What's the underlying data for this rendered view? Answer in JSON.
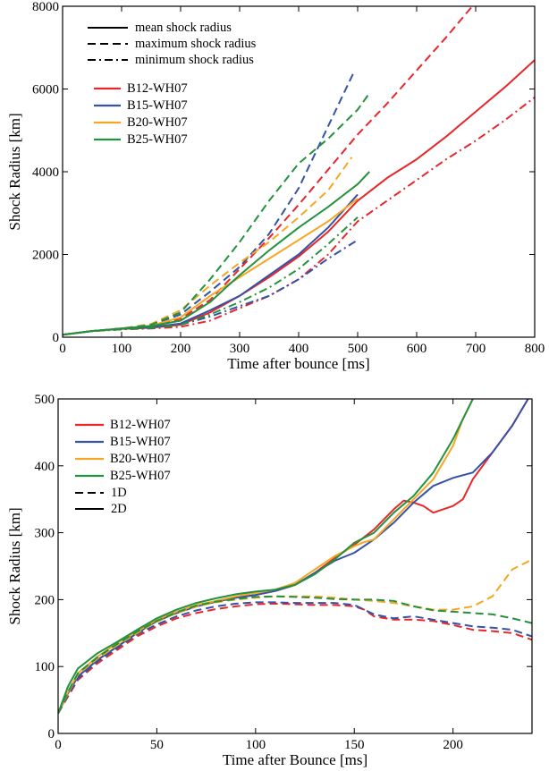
{
  "chart_data": [
    {
      "type": "line",
      "xlabel": "Time after bounce [ms]",
      "ylabel": "Shock Radius [km]",
      "xlim": [
        0,
        800
      ],
      "ylim": [
        0,
        8000
      ],
      "xticks": [
        0,
        100,
        200,
        300,
        400,
        500,
        600,
        700,
        800
      ],
      "yticks": [
        0,
        2000,
        4000,
        6000,
        8000
      ],
      "xtick_labels": [
        "0",
        "100",
        "200",
        "300",
        "400",
        "500",
        "600",
        "700",
        "800"
      ],
      "ytick_labels": [
        "0",
        "2000",
        "4000",
        "6000",
        "8000"
      ],
      "style_legend": [
        {
          "label": "mean shock radius",
          "dash": "solid"
        },
        {
          "label": "maximum shock radius",
          "dash": "dashed"
        },
        {
          "label": "minimum shock radius",
          "dash": "dashdot"
        }
      ],
      "color_legend": [
        {
          "label": "B12-WH07",
          "color": "#e8272b"
        },
        {
          "label": "B15-WH07",
          "color": "#3552a6"
        },
        {
          "label": "B20-WH07",
          "color": "#f5a623"
        },
        {
          "label": "B25-WH07",
          "color": "#24913f"
        }
      ],
      "series": [
        {
          "name": "B12-WH07",
          "kind": "mean",
          "color": "#e8272b",
          "dash": "solid",
          "x": [
            0,
            50,
            100,
            150,
            200,
            250,
            300,
            350,
            400,
            450,
            500,
            550,
            600,
            650,
            700,
            750,
            800
          ],
          "y": [
            60,
            150,
            200,
            230,
            300,
            600,
            1000,
            1450,
            1950,
            2550,
            3300,
            3850,
            4300,
            4850,
            5450,
            6050,
            6700
          ]
        },
        {
          "name": "B12-WH07",
          "kind": "maximum",
          "color": "#e8272b",
          "dash": "dashed",
          "x": [
            0,
            50,
            100,
            150,
            200,
            250,
            300,
            350,
            400,
            450,
            500,
            550,
            600,
            650,
            700
          ],
          "y": [
            60,
            150,
            200,
            260,
            450,
            900,
            1650,
            2400,
            3200,
            4050,
            4900,
            5650,
            6450,
            7250,
            8100
          ]
        },
        {
          "name": "B12-WH07",
          "kind": "minimum",
          "color": "#e8272b",
          "dash": "dashdot",
          "x": [
            0,
            50,
            100,
            150,
            200,
            250,
            300,
            350,
            400,
            450,
            500,
            550,
            600,
            650,
            700,
            750,
            800
          ],
          "y": [
            60,
            150,
            190,
            210,
            250,
            400,
            700,
            1000,
            1400,
            2000,
            2800,
            3300,
            3800,
            4300,
            4750,
            5250,
            5800
          ]
        },
        {
          "name": "B15-WH07",
          "kind": "mean",
          "color": "#3552a6",
          "dash": "solid",
          "x": [
            0,
            50,
            100,
            150,
            200,
            250,
            300,
            350,
            400,
            450,
            500
          ],
          "y": [
            60,
            150,
            210,
            240,
            330,
            650,
            1000,
            1500,
            2000,
            2650,
            3450
          ]
        },
        {
          "name": "B15-WH07",
          "kind": "maximum",
          "color": "#3552a6",
          "dash": "dashed",
          "x": [
            0,
            50,
            100,
            150,
            200,
            250,
            300,
            350,
            400,
            450,
            495
          ],
          "y": [
            60,
            150,
            210,
            300,
            550,
            1100,
            1700,
            2500,
            3600,
            5100,
            6450
          ]
        },
        {
          "name": "B15-WH07",
          "kind": "minimum",
          "color": "#3552a6",
          "dash": "dashdot",
          "x": [
            0,
            50,
            100,
            150,
            200,
            250,
            300,
            350,
            400,
            450,
            500
          ],
          "y": [
            60,
            150,
            190,
            220,
            300,
            500,
            750,
            1000,
            1400,
            1900,
            2350
          ]
        },
        {
          "name": "B20-WH07",
          "kind": "mean",
          "color": "#f5a623",
          "dash": "solid",
          "x": [
            0,
            50,
            100,
            150,
            200,
            250,
            300,
            350,
            400,
            450,
            500
          ],
          "y": [
            60,
            150,
            210,
            280,
            480,
            1000,
            1450,
            1900,
            2350,
            2800,
            3350
          ]
        },
        {
          "name": "B20-WH07",
          "kind": "maximum",
          "color": "#f5a623",
          "dash": "dashed",
          "x": [
            0,
            50,
            100,
            150,
            200,
            250,
            300,
            350,
            400,
            450,
            490
          ],
          "y": [
            60,
            150,
            210,
            320,
            650,
            1250,
            1800,
            2300,
            2900,
            3550,
            4350
          ]
        },
        {
          "name": "B25-WH07",
          "kind": "mean",
          "color": "#24913f",
          "dash": "solid",
          "x": [
            0,
            50,
            100,
            150,
            200,
            250,
            300,
            350,
            400,
            450,
            500,
            520
          ],
          "y": [
            60,
            150,
            210,
            270,
            400,
            850,
            1500,
            2100,
            2650,
            3150,
            3700,
            4000
          ]
        },
        {
          "name": "B25-WH07",
          "kind": "maximum",
          "color": "#24913f",
          "dash": "dashed",
          "x": [
            0,
            50,
            100,
            150,
            200,
            250,
            300,
            350,
            400,
            450,
            500,
            520
          ],
          "y": [
            60,
            150,
            210,
            300,
            600,
            1400,
            2300,
            3300,
            4200,
            4800,
            5500,
            5900
          ]
        },
        {
          "name": "B25-WH07",
          "kind": "minimum",
          "color": "#24913f",
          "dash": "dashdot",
          "x": [
            0,
            50,
            100,
            150,
            200,
            250,
            300,
            350,
            400,
            450,
            500
          ],
          "y": [
            60,
            150,
            190,
            220,
            300,
            550,
            850,
            1200,
            1650,
            2250,
            2900
          ]
        }
      ]
    },
    {
      "type": "line",
      "xlabel": "Time after Bounce [ms]",
      "ylabel": "Shock Radius [km]",
      "xlim": [
        0,
        240
      ],
      "ylim": [
        0,
        500
      ],
      "xticks": [
        0,
        50,
        100,
        150,
        200
      ],
      "yticks": [
        0,
        100,
        200,
        300,
        400,
        500
      ],
      "xtick_labels": [
        "0",
        "50",
        "100",
        "150",
        "200"
      ],
      "ytick_labels": [
        "0",
        "100",
        "200",
        "300",
        "400",
        "500"
      ],
      "color_legend": [
        {
          "label": "B12-WH07",
          "color": "#e8272b"
        },
        {
          "label": "B15-WH07",
          "color": "#3552a6"
        },
        {
          "label": "B20-WH07",
          "color": "#f5a623"
        },
        {
          "label": "B25-WH07",
          "color": "#24913f"
        }
      ],
      "style_legend": [
        {
          "label": "1D",
          "dash": "dashed"
        },
        {
          "label": "2D",
          "dash": "solid"
        }
      ],
      "series": [
        {
          "name": "B12-WH07",
          "kind": "2D",
          "color": "#e8272b",
          "dash": "solid",
          "x": [
            0,
            5,
            10,
            20,
            30,
            40,
            50,
            60,
            70,
            80,
            90,
            100,
            110,
            120,
            130,
            140,
            150,
            160,
            170,
            175,
            180,
            185,
            190,
            195,
            200,
            205,
            210,
            220,
            230,
            238
          ],
          "y": [
            30,
            60,
            85,
            110,
            130,
            150,
            168,
            180,
            190,
            197,
            203,
            207,
            213,
            222,
            240,
            262,
            282,
            305,
            335,
            348,
            345,
            340,
            330,
            335,
            340,
            350,
            380,
            420,
            460,
            500
          ]
        },
        {
          "name": "B15-WH07",
          "kind": "2D",
          "color": "#3552a6",
          "dash": "solid",
          "x": [
            0,
            5,
            10,
            20,
            30,
            40,
            50,
            60,
            70,
            80,
            90,
            100,
            110,
            120,
            130,
            140,
            150,
            160,
            170,
            180,
            190,
            200,
            210,
            220,
            230,
            238
          ],
          "y": [
            30,
            60,
            85,
            110,
            130,
            150,
            168,
            180,
            190,
            197,
            203,
            207,
            213,
            222,
            240,
            258,
            270,
            290,
            315,
            345,
            370,
            382,
            390,
            420,
            460,
            500
          ]
        },
        {
          "name": "B20-WH07",
          "kind": "2D",
          "color": "#f5a623",
          "dash": "solid",
          "x": [
            0,
            5,
            10,
            20,
            30,
            40,
            50,
            60,
            70,
            80,
            90,
            100,
            110,
            120,
            130,
            140,
            150,
            155,
            160,
            170,
            180,
            190,
            200,
            205,
            210
          ],
          "y": [
            30,
            62,
            90,
            115,
            135,
            152,
            170,
            182,
            192,
            198,
            205,
            210,
            215,
            225,
            245,
            265,
            280,
            286,
            290,
            320,
            350,
            380,
            430,
            470,
            500
          ]
        },
        {
          "name": "B25-WH07",
          "kind": "2D",
          "color": "#24913f",
          "dash": "solid",
          "x": [
            0,
            5,
            10,
            20,
            30,
            40,
            50,
            60,
            70,
            80,
            90,
            100,
            110,
            120,
            130,
            140,
            150,
            160,
            170,
            180,
            190,
            200,
            210
          ],
          "y": [
            30,
            70,
            97,
            120,
            137,
            155,
            172,
            185,
            195,
            202,
            208,
            212,
            215,
            222,
            238,
            260,
            285,
            300,
            330,
            355,
            390,
            440,
            500
          ]
        },
        {
          "name": "B12-WH07",
          "kind": "1D",
          "color": "#e8272b",
          "dash": "dashed",
          "x": [
            0,
            5,
            10,
            20,
            30,
            40,
            50,
            60,
            70,
            80,
            90,
            100,
            110,
            120,
            130,
            140,
            150,
            155,
            160,
            170,
            180,
            190,
            200,
            210,
            220,
            230,
            240
          ],
          "y": [
            30,
            55,
            80,
            105,
            125,
            145,
            160,
            172,
            180,
            186,
            190,
            193,
            194,
            193,
            192,
            192,
            190,
            185,
            175,
            170,
            170,
            168,
            162,
            155,
            153,
            150,
            140
          ]
        },
        {
          "name": "B15-WH07",
          "kind": "1D",
          "color": "#3552a6",
          "dash": "dashed",
          "x": [
            0,
            5,
            10,
            20,
            30,
            40,
            50,
            60,
            70,
            80,
            90,
            100,
            110,
            120,
            130,
            140,
            150,
            155,
            160,
            170,
            180,
            190,
            200,
            210,
            220,
            230,
            240
          ],
          "y": [
            30,
            57,
            82,
            108,
            128,
            148,
            163,
            175,
            184,
            190,
            194,
            196,
            196,
            195,
            195,
            195,
            192,
            185,
            178,
            172,
            175,
            170,
            165,
            160,
            158,
            155,
            145
          ]
        },
        {
          "name": "B20-WH07",
          "kind": "1D",
          "color": "#f5a623",
          "dash": "dashed",
          "x": [
            0,
            5,
            10,
            20,
            30,
            40,
            50,
            60,
            70,
            80,
            90,
            100,
            110,
            120,
            130,
            140,
            150,
            160,
            170,
            180,
            190,
            200,
            210,
            220,
            230,
            240
          ],
          "y": [
            30,
            60,
            88,
            112,
            132,
            150,
            167,
            180,
            190,
            196,
            200,
            203,
            205,
            205,
            205,
            203,
            200,
            198,
            195,
            190,
            185,
            185,
            190,
            205,
            245,
            260
          ]
        },
        {
          "name": "B25-WH07",
          "kind": "1D",
          "color": "#24913f",
          "dash": "dashed",
          "x": [
            0,
            5,
            10,
            20,
            30,
            40,
            50,
            60,
            70,
            80,
            90,
            100,
            110,
            120,
            130,
            140,
            150,
            160,
            170,
            180,
            190,
            200,
            210,
            220,
            230,
            240
          ],
          "y": [
            30,
            62,
            90,
            114,
            134,
            152,
            168,
            181,
            191,
            197,
            201,
            204,
            205,
            204,
            203,
            201,
            200,
            200,
            198,
            190,
            184,
            182,
            180,
            178,
            172,
            165
          ]
        }
      ]
    }
  ]
}
